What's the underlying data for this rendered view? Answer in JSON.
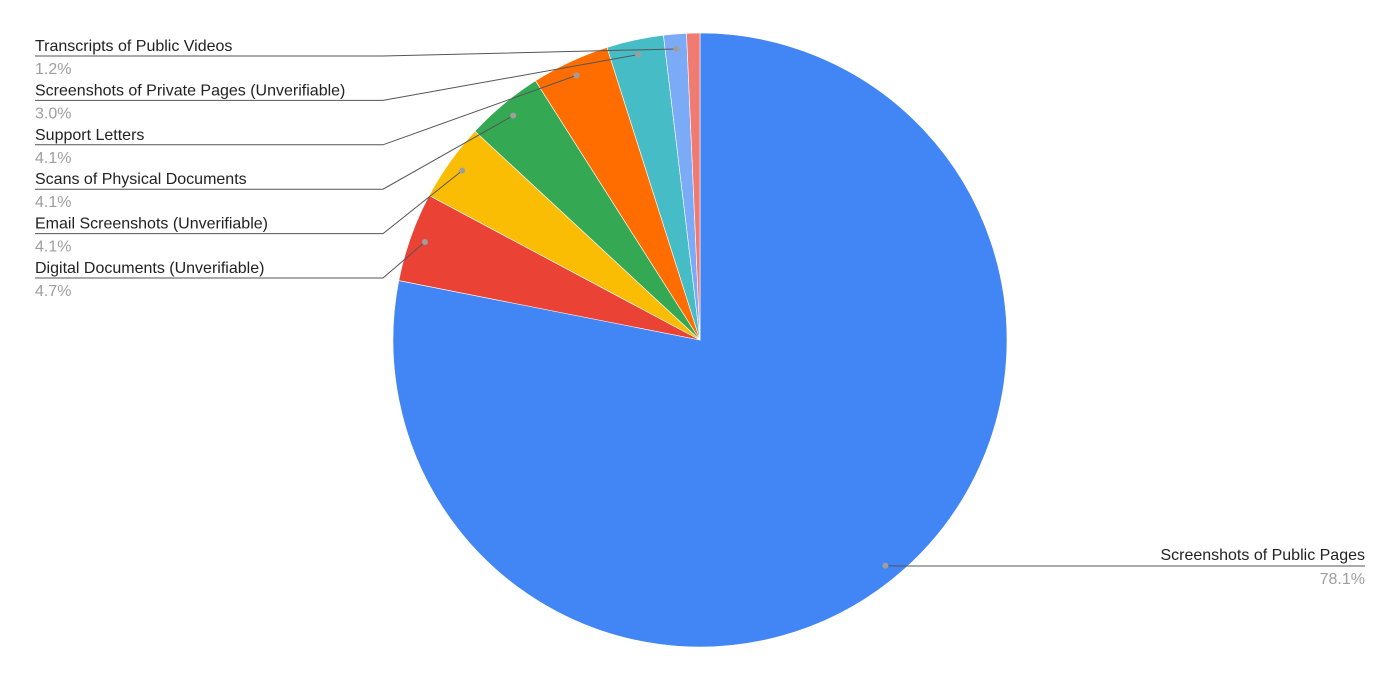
{
  "chart_data": {
    "type": "pie",
    "start_angle": "12 o'clock, clockwise",
    "slices": [
      {
        "name": "Screenshots of Public Pages",
        "value": 78.1,
        "label": "78.1%",
        "color": "#4285F4"
      },
      {
        "name": "Digital Documents (Unverifiable)",
        "value": 4.7,
        "label": "4.7%",
        "color": "#EA4335"
      },
      {
        "name": "Email Screenshots (Unverifiable)",
        "value": 4.1,
        "label": "4.1%",
        "color": "#FBBC04"
      },
      {
        "name": "Scans of Physical Documents",
        "value": 4.1,
        "label": "4.1%",
        "color": "#34A853"
      },
      {
        "name": "Support Letters",
        "value": 4.1,
        "label": "4.1%",
        "color": "#FF6D01"
      },
      {
        "name": "Screenshots of Private Pages (Unverifiable)",
        "value": 3.0,
        "label": "3.0%",
        "color": "#46BDC6"
      },
      {
        "name": "Transcripts of Public Videos",
        "value": 1.2,
        "label": "1.2%",
        "color": "#7BAAF7"
      },
      {
        "name": "",
        "value": 0.7,
        "label": "",
        "color": "#F07B72"
      }
    ],
    "legend": "leader-line labels"
  }
}
